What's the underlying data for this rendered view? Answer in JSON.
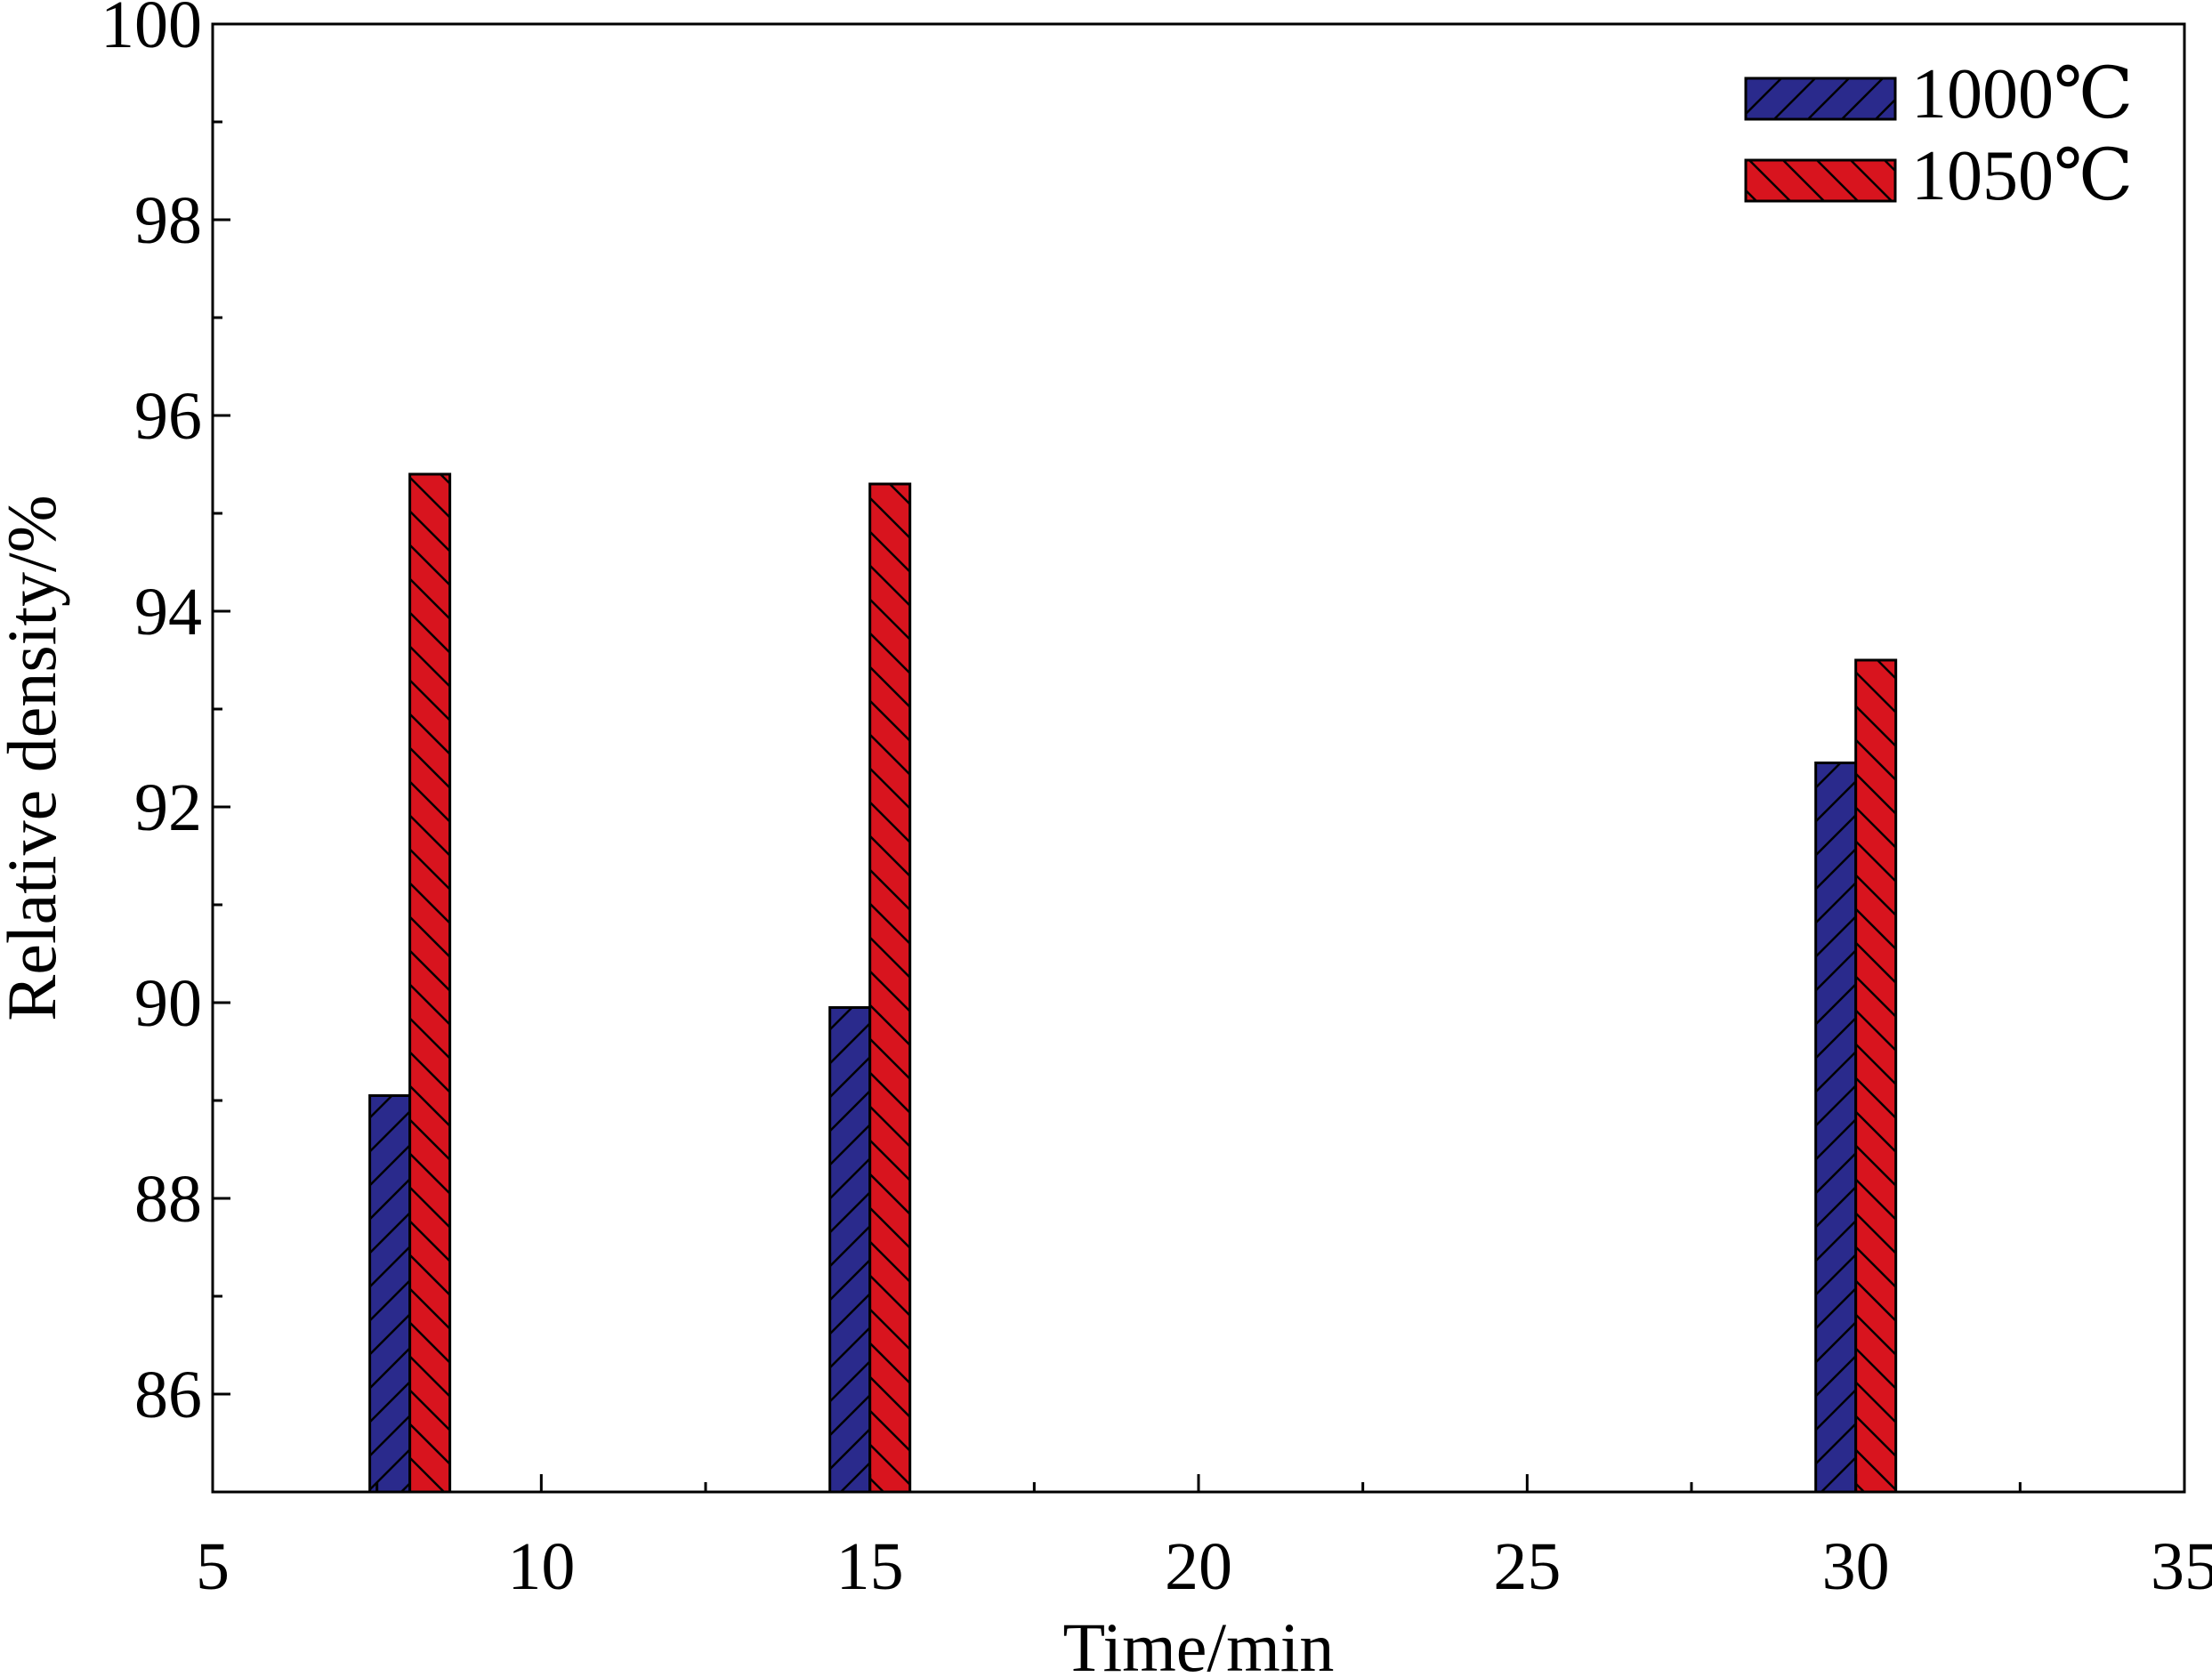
{
  "chart_data": {
    "type": "bar",
    "xlabel": "Time/min",
    "ylabel": "Relative density/%",
    "xlim": [
      5,
      35
    ],
    "ylim": [
      85,
      100
    ],
    "x_ticks": [
      5,
      10,
      15,
      20,
      25,
      30,
      35
    ],
    "y_ticks": [
      86,
      88,
      90,
      92,
      94,
      96,
      98,
      100
    ],
    "x": [
      8,
      15,
      30
    ],
    "series": [
      {
        "name": "1000℃",
        "color": "#2a2a8c",
        "hatch": "forward",
        "values": [
          89.05,
          89.95,
          92.45
        ]
      },
      {
        "name": "1050℃",
        "color": "#d8141e",
        "hatch": "backward",
        "values": [
          95.4,
          95.3,
          93.5
        ]
      }
    ],
    "legend_position": "top-right",
    "grid": false
  }
}
